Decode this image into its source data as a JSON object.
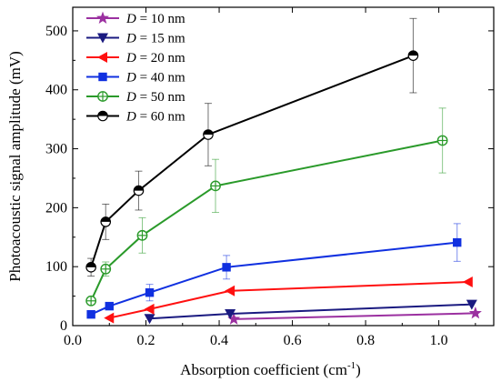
{
  "chart_data": {
    "type": "line",
    "xlabel": "Absorption coefficient (cm",
    "xlabel_sup": "-1",
    "xlabel_suffix": ")",
    "ylabel": "Photoacoustic signal amplitude (mV)",
    "xlim": [
      0.0,
      1.15
    ],
    "ylim": [
      0,
      540
    ],
    "xticks": [
      0.0,
      0.2,
      0.4,
      0.6,
      0.8,
      1.0
    ],
    "xtick_labels": [
      "0.0",
      "0.2",
      "0.4",
      "0.6",
      "0.8",
      "1.0"
    ],
    "yticks": [
      0,
      100,
      200,
      300,
      400,
      500
    ],
    "ytick_labels": [
      "0",
      "100",
      "200",
      "300",
      "400",
      "500"
    ],
    "legend_position": "top-left",
    "series": [
      {
        "name": "D = 10 nm",
        "legend_var": "D",
        "legend_rest": " = 10 nm",
        "color": "#9b30a0",
        "marker": "star",
        "x": [
          0.44,
          1.1
        ],
        "y": [
          11,
          21
        ],
        "err": [
          0,
          0
        ]
      },
      {
        "name": "D = 15 nm",
        "legend_var": "D",
        "legend_rest": " = 15 nm",
        "color": "#1a1a80",
        "marker": "triangle-down",
        "x": [
          0.21,
          0.43,
          1.09
        ],
        "y": [
          12,
          20,
          36
        ],
        "err": [
          0,
          0,
          0
        ]
      },
      {
        "name": "D = 20 nm",
        "legend_var": "D",
        "legend_rest": " = 20 nm",
        "color": "#ff1010",
        "marker": "triangle-left",
        "x": [
          0.1,
          0.21,
          0.43,
          1.08
        ],
        "y": [
          13,
          28,
          59,
          74
        ],
        "err": [
          0,
          0,
          0,
          0
        ]
      },
      {
        "name": "D = 40 nm",
        "legend_var": "D",
        "legend_rest": " = 40 nm",
        "color": "#1030e0",
        "marker": "square",
        "x": [
          0.05,
          0.1,
          0.21,
          0.42,
          1.05
        ],
        "y": [
          19,
          33,
          56,
          99,
          141
        ],
        "err": [
          0,
          0,
          14,
          20,
          32
        ]
      },
      {
        "name": "D = 50 nm",
        "legend_var": "D",
        "legend_rest": " = 50 nm",
        "color": "#2a9a2a",
        "marker": "circle-plus",
        "x": [
          0.05,
          0.09,
          0.19,
          0.39,
          1.01
        ],
        "y": [
          42,
          96,
          153,
          237,
          314
        ],
        "err": [
          0,
          12,
          30,
          45,
          55
        ]
      },
      {
        "name": "D = 60 nm",
        "legend_var": "D",
        "legend_rest": " = 60 nm",
        "color": "#000000",
        "marker": "circle-half",
        "x": [
          0.05,
          0.09,
          0.18,
          0.37,
          0.93
        ],
        "y": [
          99,
          176,
          229,
          324,
          458
        ],
        "err": [
          15,
          30,
          33,
          53,
          63
        ]
      }
    ]
  }
}
